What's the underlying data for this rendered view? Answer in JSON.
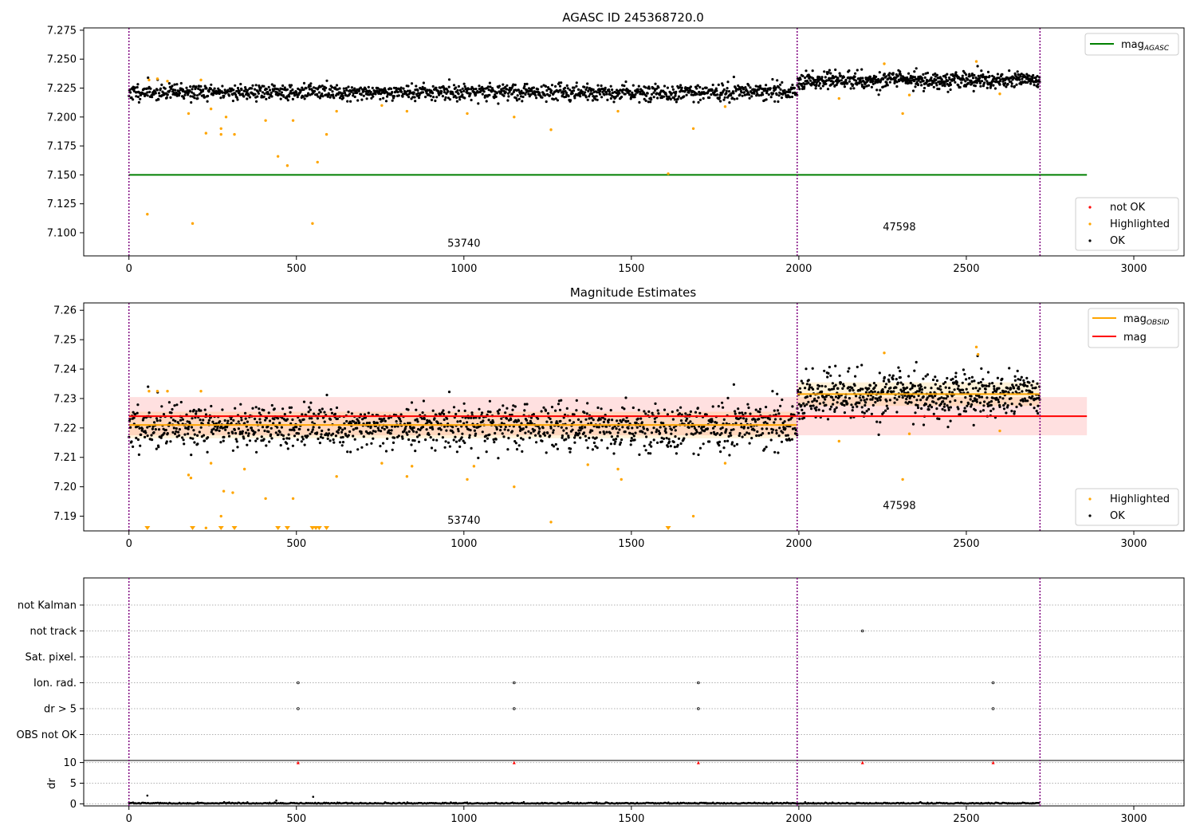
{
  "chart_data": [
    {
      "type": "scatter",
      "title": "AGASC ID 245368720.0",
      "xlim": [
        -135,
        3150
      ],
      "ylim": [
        7.08,
        7.277
      ],
      "x_ticks": [
        0,
        500,
        1000,
        1500,
        2000,
        2500,
        3000
      ],
      "y_ticks": [
        "7.100",
        "7.125",
        "7.150",
        "7.175",
        "7.200",
        "7.225",
        "7.250",
        "7.275"
      ],
      "obs_boundaries": [
        0,
        1995,
        2720
      ],
      "obsids": [
        {
          "label": "53740",
          "x": 1000,
          "y": 7.088
        },
        {
          "label": "47598",
          "x": 2300,
          "y": 7.102
        }
      ],
      "lines": [
        {
          "name": "mag",
          "sub": "AGASC",
          "y": 7.15,
          "x": [
            0,
            2860
          ],
          "color": "#008000"
        }
      ],
      "legend_points": [
        "not OK",
        "Highlighted",
        "OK"
      ],
      "ok_series": [
        {
          "x_start": 0,
          "x_end": 1995,
          "count": 1400,
          "mean": 7.2215,
          "sd": 0.0035,
          "seed": 11
        },
        {
          "x_start": 1995,
          "x_end": 2720,
          "count": 620,
          "mean": 7.232,
          "sd": 0.0035,
          "seed": 23
        }
      ],
      "highlighted": [
        [
          55,
          7.116
        ],
        [
          190,
          7.108
        ],
        [
          548,
          7.108
        ],
        [
          445,
          7.166
        ],
        [
          473,
          7.158
        ],
        [
          563,
          7.161
        ],
        [
          178,
          7.203
        ],
        [
          230,
          7.186
        ],
        [
          275,
          7.185
        ],
        [
          275,
          7.19
        ],
        [
          290,
          7.2
        ],
        [
          315,
          7.185
        ],
        [
          408,
          7.197
        ],
        [
          490,
          7.197
        ],
        [
          590,
          7.185
        ],
        [
          620,
          7.205
        ],
        [
          755,
          7.21
        ],
        [
          830,
          7.205
        ],
        [
          1010,
          7.203
        ],
        [
          1150,
          7.2
        ],
        [
          1260,
          7.189
        ],
        [
          1460,
          7.205
        ],
        [
          1610,
          7.151
        ],
        [
          1685,
          7.19
        ],
        [
          1780,
          7.209
        ],
        [
          2120,
          7.216
        ],
        [
          2255,
          7.246
        ],
        [
          2310,
          7.203
        ],
        [
          2330,
          7.219
        ],
        [
          2530,
          7.248
        ],
        [
          2600,
          7.22
        ],
        [
          60,
          7.232
        ],
        [
          85,
          7.233
        ],
        [
          115,
          7.231
        ],
        [
          215,
          7.232
        ],
        [
          245,
          7.207
        ]
      ],
      "colors": {
        "ok": "#000000",
        "highlighted": "#ffa500",
        "not_ok": "#ff0000",
        "boundary": "#800080"
      }
    },
    {
      "type": "scatter",
      "title": "Magnitude Estimates",
      "xlim": [
        -135,
        3150
      ],
      "ylim": [
        7.185,
        7.2625
      ],
      "x_ticks": [
        0,
        500,
        1000,
        1500,
        2000,
        2500,
        3000
      ],
      "y_ticks": [
        "7.19",
        "7.20",
        "7.21",
        "7.22",
        "7.23",
        "7.24",
        "7.25",
        "7.26"
      ],
      "obs_boundaries": [
        0,
        1995,
        2720
      ],
      "obsids": [
        {
          "label": "53740",
          "x": 1000,
          "y": 7.1875
        },
        {
          "label": "47598",
          "x": 2300,
          "y": 7.1925
        }
      ],
      "lines": [
        {
          "name": "mag",
          "sub": "OBSID",
          "color": "#ffa500",
          "segments": [
            {
              "x": [
                0,
                1995
              ],
              "y": 7.221
            },
            {
              "x": [
                1995,
                2720
              ],
              "y": 7.2315
            }
          ]
        },
        {
          "name": "mag",
          "sub": "",
          "color": "#ff0000",
          "y": 7.224,
          "x": [
            0,
            2860
          ]
        }
      ],
      "bands": [
        {
          "x": [
            0,
            2860
          ],
          "y": [
            7.2175,
            7.2305
          ],
          "color": "#ff0000",
          "opacity": 0.12
        },
        {
          "x": [
            0,
            1995
          ],
          "y": [
            7.2165,
            7.2255
          ],
          "color": "#ffa500",
          "opacity": 0.15
        },
        {
          "x": [
            1995,
            2720
          ],
          "y": [
            7.2275,
            7.2355
          ],
          "color": "#ffa500",
          "opacity": 0.15
        }
      ],
      "legend_points": [
        "Highlighted",
        "OK"
      ],
      "ok_series": [
        {
          "x_start": 0,
          "x_end": 1995,
          "count": 1400,
          "mean": 7.2205,
          "sd": 0.0038,
          "seed": 11
        },
        {
          "x_start": 1995,
          "x_end": 2720,
          "count": 620,
          "mean": 7.2315,
          "sd": 0.0038,
          "seed": 23
        }
      ],
      "highlighted": [
        [
          60,
          7.2325
        ],
        [
          85,
          7.2325
        ],
        [
          115,
          7.2325
        ],
        [
          215,
          7.2325
        ],
        [
          178,
          7.204
        ],
        [
          185,
          7.203
        ],
        [
          230,
          7.186
        ],
        [
          245,
          7.208
        ],
        [
          275,
          7.19
        ],
        [
          283,
          7.1985
        ],
        [
          310,
          7.198
        ],
        [
          345,
          7.206
        ],
        [
          408,
          7.196
        ],
        [
          490,
          7.196
        ],
        [
          620,
          7.2035
        ],
        [
          755,
          7.208
        ],
        [
          830,
          7.2035
        ],
        [
          845,
          7.207
        ],
        [
          1010,
          7.2025
        ],
        [
          1030,
          7.207
        ],
        [
          1150,
          7.2
        ],
        [
          1260,
          7.188
        ],
        [
          1370,
          7.2075
        ],
        [
          1460,
          7.206
        ],
        [
          1470,
          7.2025
        ],
        [
          1685,
          7.19
        ],
        [
          1780,
          7.208
        ],
        [
          2120,
          7.2155
        ],
        [
          2255,
          7.2455
        ],
        [
          2310,
          7.2025
        ],
        [
          2330,
          7.218
        ],
        [
          2530,
          7.2475
        ],
        [
          2535,
          7.245
        ],
        [
          2600,
          7.219
        ]
      ],
      "below_range": [
        55,
        190,
        275,
        315,
        445,
        473,
        548,
        558,
        568,
        590,
        1610
      ],
      "colors": {
        "ok": "#000000",
        "highlighted": "#ffa500",
        "boundary": "#800080"
      }
    },
    {
      "type": "scatter",
      "title": "",
      "xlim": [
        -135,
        3150
      ],
      "x_ticks": [
        0,
        500,
        1000,
        1500,
        2000,
        2500,
        3000
      ],
      "categories": [
        "not Kalman",
        "not track",
        "Sat. pixel.",
        "Ion. rad.",
        "dr > 5",
        "OBS not OK"
      ],
      "flags": [
        {
          "category": "not track",
          "x": [
            2190
          ]
        },
        {
          "category": "Ion. rad.",
          "x": [
            505,
            1150,
            1700,
            2580
          ]
        },
        {
          "category": "dr > 5",
          "x": [
            505,
            1150,
            1700,
            2580
          ]
        }
      ],
      "ylabel": "dr",
      "dr_ylim": [
        -0.5,
        10.5
      ],
      "dr_yticks": [
        0,
        5,
        10
      ],
      "dr_clipped": [
        505,
        1150,
        1700,
        2190,
        2580
      ],
      "dr_outliers": [
        [
          55,
          2.0
        ],
        [
          550,
          1.7
        ],
        [
          440,
          0.8
        ]
      ],
      "obs_boundaries": [
        0,
        1995,
        2720
      ],
      "colors": {
        "points": "#000000",
        "clipped": "#ff0000",
        "boundary": "#800080",
        "grid": "#b0b0b0"
      }
    }
  ]
}
